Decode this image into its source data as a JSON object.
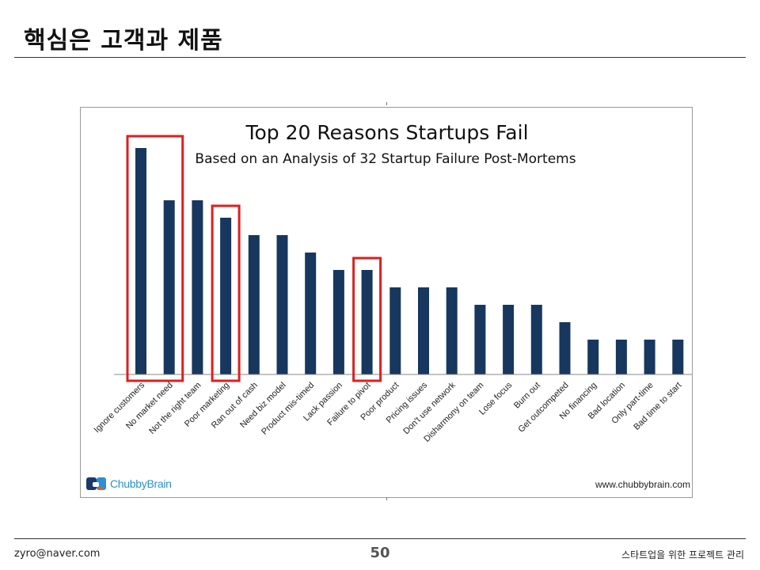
{
  "slide": {
    "title": "핵심은 고객과 제품",
    "footer_left": "zyro@naver.com",
    "page_number": "50",
    "footer_right": "스타트업을 위한 프로젝트 관리"
  },
  "branding": {
    "logo_text": "ChubbyBrain",
    "website": "www.chubbybrain.com",
    "logo_colors": [
      "#1a3a6e",
      "#2c8fd0",
      "#e05a2b"
    ]
  },
  "colors": {
    "bar": "#17375e",
    "highlight": "#e01e1e"
  },
  "chart_data": {
    "type": "bar",
    "title": "Top 20 Reasons Startups Fail",
    "subtitle": "Based on an Analysis of 32 Startup Failure Post-Mortems",
    "xlabel": "",
    "ylabel": "",
    "grid": false,
    "ylim": [
      0,
      14
    ],
    "categories": [
      "Ignore customers",
      "No market need",
      "Not the right team",
      "Poor marketing",
      "Ran out of cash",
      "Need biz model",
      "Product mis-timed",
      "Lack passion",
      "Failure to pivot",
      "Poor product",
      "Pricing issues",
      "Don't use network",
      "Disharmony on team",
      "Lose focus",
      "Burn out",
      "Get outcompeted",
      "No financing",
      "Bad location",
      "Only part-time",
      "Bad time to start"
    ],
    "values": [
      13,
      10,
      10,
      9,
      8,
      8,
      7,
      6,
      6,
      5,
      5,
      5,
      4,
      4,
      4,
      3,
      2,
      2,
      2,
      2
    ],
    "highlighted_groups": [
      [
        "Ignore customers",
        "No market need"
      ],
      [
        "Poor marketing"
      ],
      [
        "Failure to pivot"
      ]
    ]
  }
}
